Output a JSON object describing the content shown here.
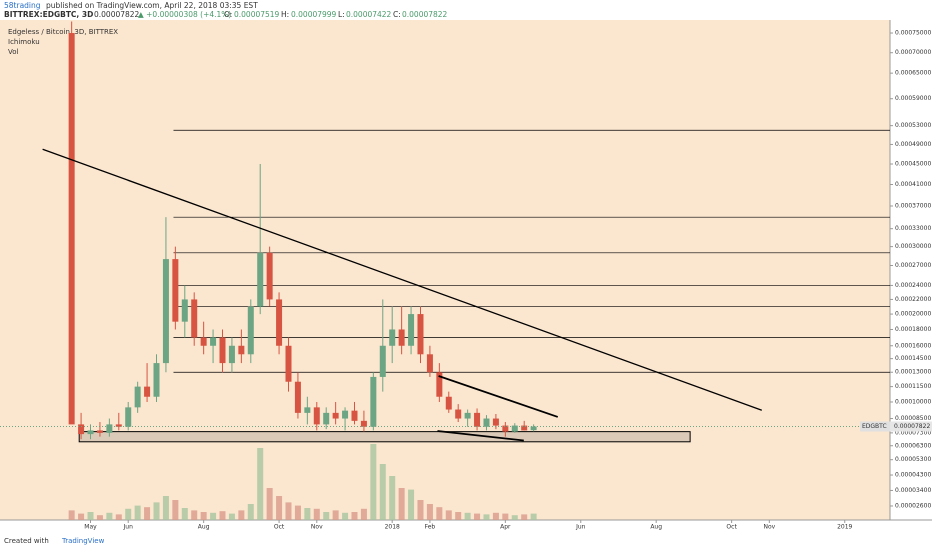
{
  "header": {
    "author": "58trading",
    "published": "published on TradingView.com, April 22, 2018 03:35 EST",
    "symbol": "BITTREX:EDGBTC, 3D",
    "last": "0.00007822",
    "change": "▲ +0.00000308 (+4.1%)",
    "o_label": "O:",
    "o": "0.00007519",
    "h_label": "H:",
    "h": "0.00007999",
    "l_label": "L:",
    "l": "0.00007422",
    "c_label": "C:",
    "c": "0.00007822"
  },
  "footer": {
    "created": "Created with",
    "brand": "TradingView"
  },
  "chart_data": {
    "type": "candlestick",
    "yscale": "sqrt",
    "legend": [
      "Edgeless / Bitcoin, 3D, BITTREX",
      "Ichimoku",
      "Vol"
    ],
    "price_tag": {
      "name": "EDGBTC",
      "value": 7.822e-05,
      "label": "0.00007822"
    },
    "up_color": "#6ba583",
    "down_color": "#d75442",
    "volume_up_color": "#a8c5a0",
    "volume_down_color": "#d99a8a",
    "line_color": "#000000",
    "background": "#fbe6cf",
    "xlim": [
      -2.4,
      21.2
    ],
    "xticks": [
      {
        "value": 0,
        "label": "May"
      },
      {
        "value": 1,
        "label": "Jun"
      },
      {
        "value": 3,
        "label": "Aug"
      },
      {
        "value": 5,
        "label": "Oct"
      },
      {
        "value": 6,
        "label": "Nov"
      },
      {
        "value": 8,
        "label": "2018"
      },
      {
        "value": 9,
        "label": "Feb"
      },
      {
        "value": 11,
        "label": "Apr"
      },
      {
        "value": 13,
        "label": "Jun"
      },
      {
        "value": 15,
        "label": "Aug"
      },
      {
        "value": 17,
        "label": "Oct"
      },
      {
        "value": 18,
        "label": "Nov"
      },
      {
        "value": 20,
        "label": "2019"
      }
    ],
    "ylim": [
      1.97e-05,
      0.000784
    ],
    "yticks": [
      {
        "value": 0.00075,
        "label": "0.00075000"
      },
      {
        "value": 0.0007,
        "label": "0.00070000"
      },
      {
        "value": 0.00065,
        "label": "0.00065000"
      },
      {
        "value": 0.00059,
        "label": "0.00059000"
      },
      {
        "value": 0.00053,
        "label": "0.00053000"
      },
      {
        "value": 0.00049,
        "label": "0.00049000"
      },
      {
        "value": 0.00045,
        "label": "0.00045000"
      },
      {
        "value": 0.00041,
        "label": "0.00041000"
      },
      {
        "value": 0.00037,
        "label": "0.00037000"
      },
      {
        "value": 0.00033,
        "label": "0.00033000"
      },
      {
        "value": 0.0003,
        "label": "0.00030000"
      },
      {
        "value": 0.00027,
        "label": "0.00027000"
      },
      {
        "value": 0.00024,
        "label": "0.00024000"
      },
      {
        "value": 0.00022,
        "label": "0.00022000"
      },
      {
        "value": 0.0002,
        "label": "0.00020000"
      },
      {
        "value": 0.00018,
        "label": "0.00018000"
      },
      {
        "value": 0.00016,
        "label": "0.00016000"
      },
      {
        "value": 0.000145,
        "label": "0.00014500"
      },
      {
        "value": 0.00013,
        "label": "0.00013000"
      },
      {
        "value": 0.000115,
        "label": "0.00011500"
      },
      {
        "value": 0.0001,
        "label": "0.00010000"
      },
      {
        "value": 8.5e-05,
        "label": "0.00008500"
      },
      {
        "value": 7.3e-05,
        "label": "0.00007300"
      },
      {
        "value": 6.3e-05,
        "label": "0.00006300"
      },
      {
        "value": 5.3e-05,
        "label": "0.00005300"
      },
      {
        "value": 4.3e-05,
        "label": "0.00004300"
      },
      {
        "value": 3.4e-05,
        "label": "0.00003400"
      },
      {
        "value": 2.6e-05,
        "label": "0.00002600"
      }
    ],
    "x": [
      -0.5,
      -0.25,
      0,
      0.25,
      0.5,
      0.75,
      1,
      1.25,
      1.5,
      1.75,
      2,
      2.25,
      2.5,
      2.75,
      3,
      3.25,
      3.5,
      3.75,
      4,
      4.25,
      4.5,
      4.75,
      5,
      5.25,
      5.5,
      5.75,
      6,
      6.25,
      6.5,
      6.75,
      7,
      7.25,
      7.5,
      7.75,
      8,
      8.25,
      8.5,
      8.75,
      9,
      9.25,
      9.5,
      9.75,
      10,
      10.25,
      10.5,
      10.75,
      11,
      11.25,
      11.5,
      11.75
    ],
    "open": [
      0.00075,
      8e-05,
      7.2e-05,
      7.5e-05,
      7.3e-05,
      8e-05,
      7.8e-05,
      9.5e-05,
      0.000115,
      0.000105,
      0.00014,
      0.00028,
      0.00019,
      0.00022,
      0.00017,
      0.00016,
      0.00017,
      0.00014,
      0.00016,
      0.00015,
      0.00021,
      0.00029,
      0.00022,
      0.00016,
      0.00012,
      9e-05,
      9.5e-05,
      8e-05,
      9e-05,
      8.5e-05,
      9.2e-05,
      8.3e-05,
      7.8e-05,
      0.000125,
      0.00016,
      0.00018,
      0.00016,
      0.0002,
      0.00015,
      0.00013,
      0.000105,
      9.3e-05,
      8.5e-05,
      9e-05,
      7.8e-05,
      8.5e-05,
      7.9e-05,
      7.4e-05,
      7.9e-05,
      7.519e-05
    ],
    "high": [
      0.00078,
      9e-05,
      8e-05,
      8.2e-05,
      8.5e-05,
      9e-05,
      0.0001,
      0.00012,
      0.00014,
      0.00015,
      0.00035,
      0.0003,
      0.00024,
      0.00023,
      0.00019,
      0.00018,
      0.00018,
      0.00017,
      0.00018,
      0.00022,
      0.00045,
      0.0003,
      0.00023,
      0.00017,
      0.00013,
      0.000105,
      0.0001,
      9.5e-05,
      0.0001,
      9.5e-05,
      0.0001,
      9.2e-05,
      0.00013,
      0.00022,
      0.00021,
      0.00021,
      0.00021,
      0.00021,
      0.00016,
      0.00014,
      0.00011,
      9.8e-05,
      9.3e-05,
      9.4e-05,
      8.8e-05,
      8.9e-05,
      8.2e-05,
      8.1e-05,
      8.3e-05,
      7.999e-05
    ],
    "low": [
      8.5e-05,
      6.8e-05,
      6.8e-05,
      7e-05,
      7e-05,
      7.5e-05,
      7.5e-05,
      9e-05,
      0.0001,
      0.0001,
      0.00013,
      0.00018,
      0.00017,
      0.00016,
      0.00015,
      0.00014,
      0.00013,
      0.00013,
      0.00014,
      0.00014,
      0.0002,
      0.00021,
      0.00015,
      0.00011,
      8.5e-05,
      8e-05,
      7.5e-05,
      7.6e-05,
      8e-05,
      7.5e-05,
      8e-05,
      7.4e-05,
      7.5e-05,
      0.00011,
      0.00014,
      0.00015,
      0.00015,
      0.00014,
      0.000125,
      0.0001,
      9e-05,
      8.2e-05,
      7.8e-05,
      7.5e-05,
      7.5e-05,
      7.6e-05,
      7e-05,
      7.3e-05,
      7.5e-05,
      7.422e-05
    ],
    "close": [
      8e-05,
      7.2e-05,
      7.5e-05,
      7.3e-05,
      8e-05,
      7.8e-05,
      9.5e-05,
      0.000115,
      0.000105,
      0.00014,
      0.00028,
      0.00019,
      0.00022,
      0.00017,
      0.00016,
      0.00017,
      0.00014,
      0.00016,
      0.00015,
      0.00021,
      0.00029,
      0.00022,
      0.00016,
      0.00012,
      9e-05,
      9.5e-05,
      8e-05,
      9e-05,
      8.5e-05,
      9.2e-05,
      8.3e-05,
      7.8e-05,
      0.000125,
      0.00016,
      0.00018,
      0.00016,
      0.0002,
      0.00015,
      0.00013,
      0.000105,
      9.3e-05,
      8.5e-05,
      9e-05,
      7.8e-05,
      8.5e-05,
      7.9e-05,
      7.4e-05,
      7.9e-05,
      7.5e-05,
      7.822e-05
    ],
    "volume": [
      12,
      8,
      10,
      6,
      9,
      7,
      14,
      18,
      16,
      22,
      30,
      25,
      15,
      12,
      10,
      9,
      11,
      8,
      12,
      20,
      90,
      40,
      30,
      22,
      18,
      15,
      14,
      10,
      12,
      9,
      10,
      14,
      95,
      70,
      55,
      40,
      38,
      25,
      20,
      16,
      12,
      10,
      9,
      8,
      7,
      9,
      8,
      6,
      7,
      8
    ],
    "vlim": [
      0,
      100
    ],
    "levels": [
      0.00052,
      0.00035,
      0.00029,
      0.00024,
      0.00021,
      0.00017,
      0.00013
    ],
    "levels_x": [
      2.2,
      21.2
    ],
    "support_box": {
      "x": [
        -0.3,
        15.9
      ],
      "y": [
        7.4e-05,
        6.6e-05
      ]
    },
    "trendlines": [
      {
        "x": [
          -1.27,
          17.8
        ],
        "y": [
          0.00048,
          9.24e-05
        ]
      },
      {
        "x": [
          9.23,
          12.39
        ],
        "y": [
          0.000126,
          8.64e-05
        ]
      },
      {
        "x": [
          9.2,
          11.49
        ],
        "y": [
          7.45e-05,
          6.7e-05
        ]
      }
    ]
  }
}
